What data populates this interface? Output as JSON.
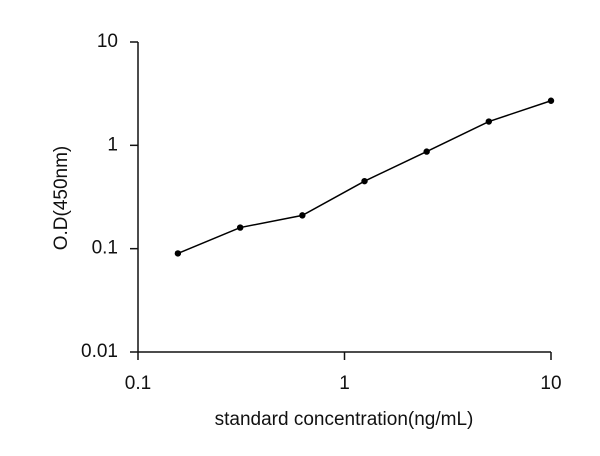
{
  "chart_data": {
    "type": "line",
    "x_label": "standard concentration(ng/mL)",
    "y_label": "O.D(450nm)",
    "x": [
      0.156,
      0.3125,
      0.625,
      1.25,
      2.5,
      5,
      10
    ],
    "series": [
      {
        "color": "#000000",
        "values": [
          0.09,
          0.16,
          0.21,
          0.45,
          0.87,
          1.7,
          2.7
        ]
      }
    ],
    "xlim": [
      0.1,
      10
    ],
    "xticks": [
      0.1,
      1,
      10
    ],
    "xscale": "log",
    "ylim": [
      0.01,
      10
    ],
    "yticks": [
      0.01,
      0.1,
      1,
      10
    ],
    "yscale": "log",
    "grid": false
  }
}
